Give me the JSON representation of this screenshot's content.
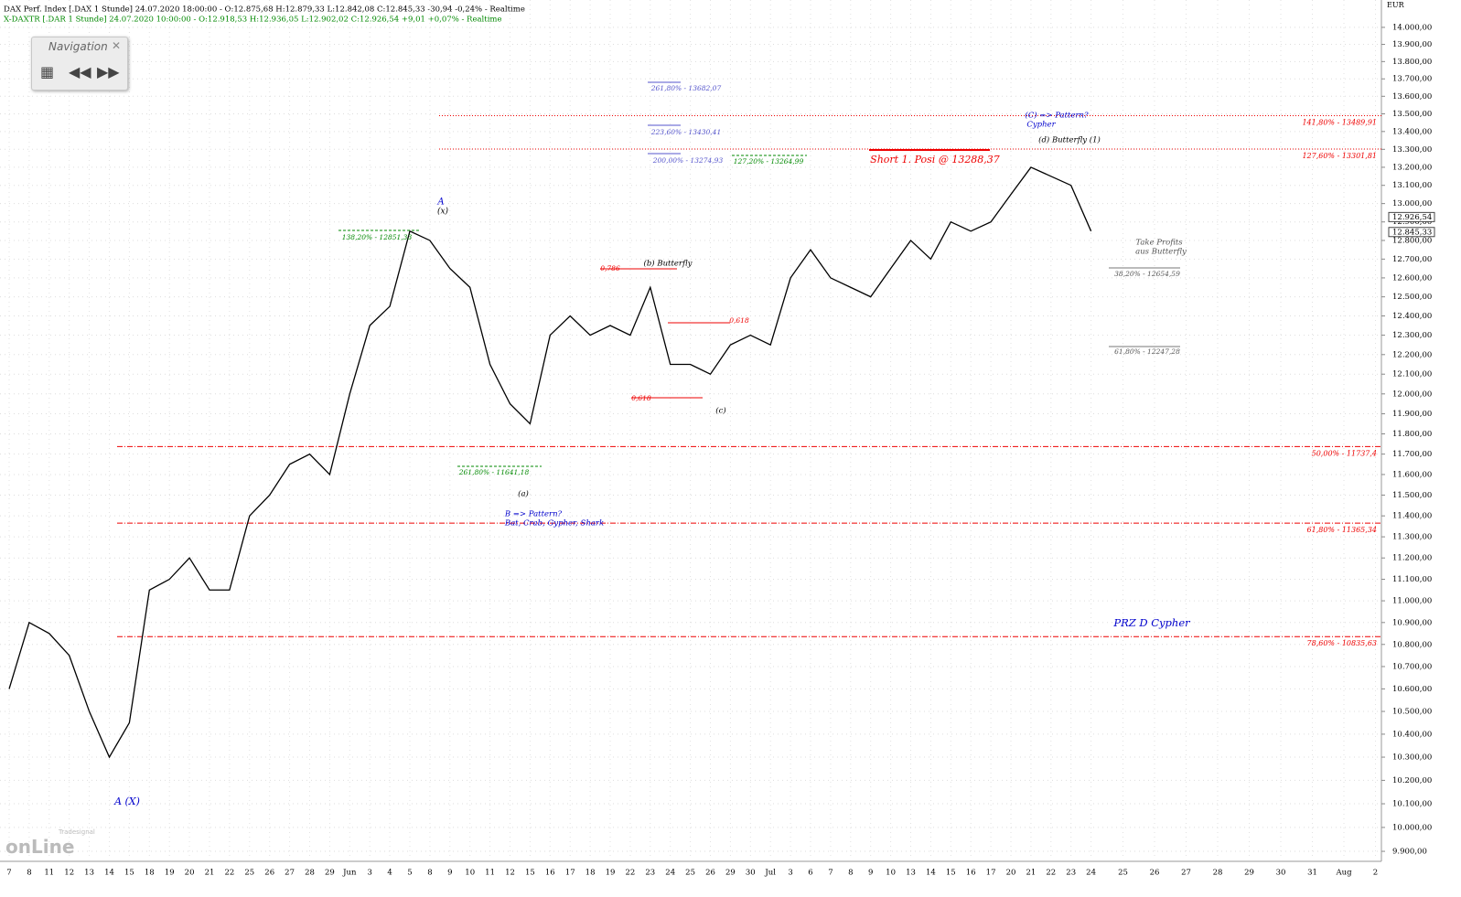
{
  "header": {
    "line1": "DAX Perf. Index [.DAX 1 Stunde] 24.07.2020 18:00:00 - O:12.875,68 H:12.879,33 L:12.842,08 C:12.845,33 -30,94 -0,24% - Realtime",
    "line2": "X-DAXTR [.DAR 1 Stunde] 24.07.2020 10:00:00 - O:12.918,53 H:12.936,05 L:12.902,02 C:12.926,54 +9,01 +0,07% - Realtime"
  },
  "navigation": {
    "title": "Navigation"
  },
  "logo": {
    "brand": "Tradesignal",
    "name": "onLine"
  },
  "chart_data": {
    "type": "line",
    "log_scale": true,
    "grid": true,
    "y_unit": "EUR",
    "categories": [
      "7",
      "8",
      "11",
      "12",
      "13",
      "14",
      "15",
      "18",
      "19",
      "20",
      "21",
      "22",
      "25",
      "26",
      "27",
      "28",
      "29",
      "Jun",
      "3",
      "4",
      "5",
      "8",
      "9",
      "10",
      "11",
      "12",
      "15",
      "16",
      "17",
      "18",
      "19",
      "22",
      "23",
      "24",
      "25",
      "26",
      "29",
      "30",
      "Jul",
      "3",
      "6",
      "7",
      "8",
      "9",
      "10",
      "13",
      "14",
      "15",
      "16",
      "17",
      "20",
      "21",
      "22",
      "23",
      "24",
      "25",
      "26",
      "27",
      "28",
      "29",
      "30",
      "31",
      "Aug",
      "2"
    ],
    "series": [
      {
        "name": "DAX Perf. Index",
        "color": "#000000",
        "values": [
          10600,
          10900,
          10850,
          10750,
          10500,
          10300,
          10450,
          11050,
          11100,
          11200,
          11050,
          11050,
          11400,
          11500,
          11650,
          11700,
          11600,
          12000,
          12350,
          12450,
          12850,
          12800,
          12650,
          12550,
          12150,
          11950,
          11850,
          12300,
          12400,
          12300,
          12350,
          12300,
          12550,
          12150,
          12150,
          12100,
          12250,
          12300,
          12250,
          12600,
          12750,
          12600,
          12550,
          12500,
          12650,
          12800,
          12700,
          12900,
          12850,
          12900,
          13050,
          13200,
          13150,
          13100,
          12850,
          null,
          null,
          null,
          null,
          null,
          null,
          null,
          null,
          null
        ]
      }
    ],
    "ylim": [
      9866,
      14162
    ],
    "yticks": [
      {
        "value": 9900,
        "label": "9.900,00"
      },
      {
        "value": 10000,
        "label": "10.000,00"
      },
      {
        "value": 10100,
        "label": "10.100,00"
      },
      {
        "value": 10200,
        "label": "10.200,00"
      },
      {
        "value": 10300,
        "label": "10.300,00"
      },
      {
        "value": 10400,
        "label": "10.400,00"
      },
      {
        "value": 10500,
        "label": "10.500,00"
      },
      {
        "value": 10600,
        "label": "10.600,00"
      },
      {
        "value": 10700,
        "label": "10.700,00"
      },
      {
        "value": 10800,
        "label": "10.800,00"
      },
      {
        "value": 10900,
        "label": "10.900,00"
      },
      {
        "value": 11000,
        "label": "11.000,00"
      },
      {
        "value": 11100,
        "label": "11.100,00"
      },
      {
        "value": 11200,
        "label": "11.200,00"
      },
      {
        "value": 11300,
        "label": "11.300,00"
      },
      {
        "value": 11400,
        "label": "11.400,00"
      },
      {
        "value": 11500,
        "label": "11.500,00"
      },
      {
        "value": 11600,
        "label": "11.600,00"
      },
      {
        "value": 11700,
        "label": "11.700,00"
      },
      {
        "value": 11800,
        "label": "11.800,00"
      },
      {
        "value": 11900,
        "label": "11.900,00"
      },
      {
        "value": 12000,
        "label": "12.000,00"
      },
      {
        "value": 12100,
        "label": "12.100,00"
      },
      {
        "value": 12200,
        "label": "12.200,00"
      },
      {
        "value": 12300,
        "label": "12.300,00"
      },
      {
        "value": 12400,
        "label": "12.400,00"
      },
      {
        "value": 12500,
        "label": "12.500,00"
      },
      {
        "value": 12600,
        "label": "12.600,00"
      },
      {
        "value": 12700,
        "label": "12.700,00"
      },
      {
        "value": 12800,
        "label": "12.800,00"
      },
      {
        "value": 12900,
        "label": "12.900,00"
      },
      {
        "value": 13000,
        "label": "13.000,00"
      },
      {
        "value": 13100,
        "label": "13.100,00"
      },
      {
        "value": 13200,
        "label": "13.200,00"
      },
      {
        "value": 13300,
        "label": "13.300,00"
      },
      {
        "value": 13400,
        "label": "13.400,00"
      },
      {
        "value": 13500,
        "label": "13.500,00"
      },
      {
        "value": 13600,
        "label": "13.600,00"
      },
      {
        "value": 13700,
        "label": "13.700,00"
      },
      {
        "value": 13800,
        "label": "13.800,00"
      },
      {
        "value": 13900,
        "label": "13.900,00"
      },
      {
        "value": 14000,
        "label": "14.000,00"
      }
    ],
    "last_prices": [
      {
        "value": 12926.54,
        "label": "12.926,54"
      },
      {
        "value": 12845.33,
        "label": "12.845,33"
      }
    ],
    "levels": [
      {
        "value": 13489.91,
        "label": "141,80% - 13489,91",
        "style": "dotted"
      },
      {
        "value": 13301.81,
        "label": "127,60% - 13301,81",
        "style": "dotted"
      },
      {
        "value": 11737.4,
        "label": "50,00% - 11737,4",
        "style": "dashdot"
      },
      {
        "value": 11365.34,
        "label": "61,80% - 11365,34",
        "style": "dashdot"
      },
      {
        "value": 10835.63,
        "label": "78,60% - 10835,63",
        "style": "dashdot"
      }
    ],
    "annotations": [
      "A",
      "(x)",
      "138,20% - 12851,33",
      "261,80% - 13682,07",
      "223,60% - 13430,41",
      "200,00% - 13274,93",
      "127,20% - 13264,99",
      "Short 1. Posi @ 13288,37",
      "(C) => Pattern?",
      "Cypher",
      "(d) Butterfly (1)",
      "(b) Butterfly",
      "0,786",
      "0,618",
      "0,618",
      "(c)",
      "(a)",
      "261,80% - 11641,18",
      "B => Pattern?",
      "Bat, Crab, Gypher, Shark",
      "Take Profits",
      "aus Butterfly",
      "38,20% - 12654,59",
      "61,80% - 12247,28",
      "PRZ D Cypher",
      "A (X)"
    ]
  }
}
